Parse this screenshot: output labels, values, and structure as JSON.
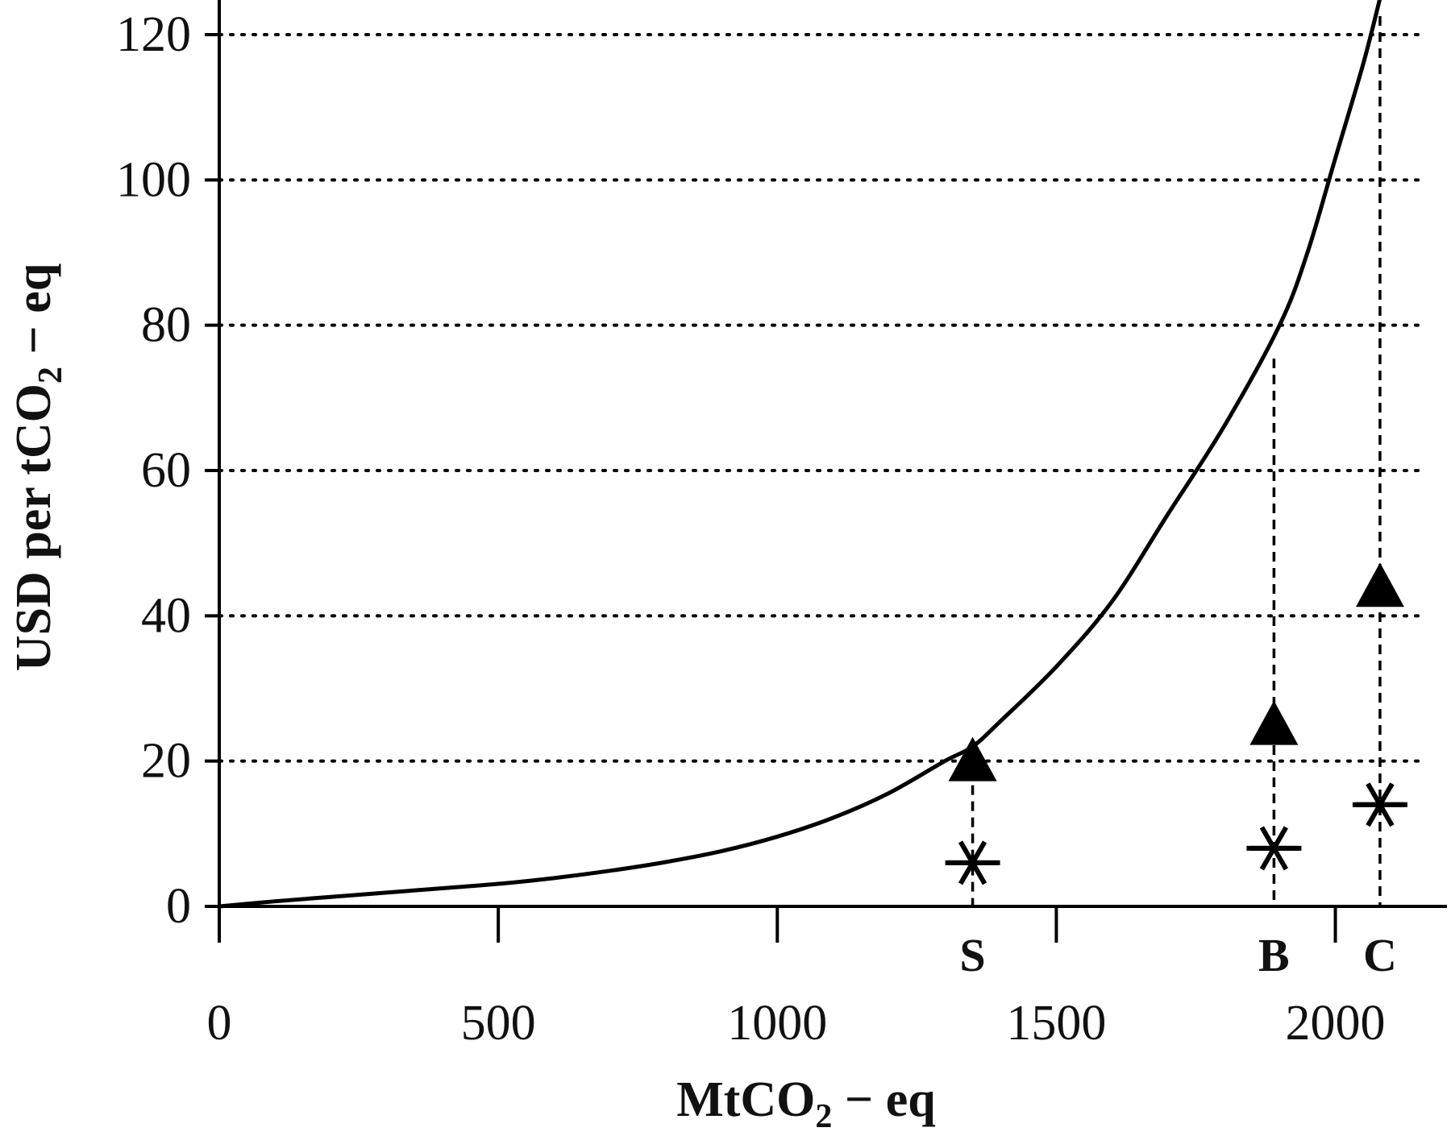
{
  "chart_data": {
    "type": "line",
    "title": "",
    "xlabel": {
      "main": "MtCO",
      "sub": "2",
      "suffix": " − eq"
    },
    "ylabel": {
      "main": "USD per tCO",
      "sub": "2",
      "suffix": " − eq"
    },
    "xlim": [
      0,
      2200
    ],
    "ylim": [
      0,
      120
    ],
    "xticks": [
      0,
      500,
      1000,
      1500,
      2000
    ],
    "xtick_labels": [
      "0",
      "500",
      "1000",
      "1500",
      "2000"
    ],
    "yticks": [
      0,
      20,
      40,
      60,
      80,
      100,
      120
    ],
    "ytick_labels": [
      "0",
      "20",
      "40",
      "60",
      "80",
      "100",
      "120"
    ],
    "grid": "horizontal dotted",
    "curve": {
      "x": [
        0,
        100,
        200,
        300,
        400,
        500,
        600,
        700,
        800,
        900,
        1000,
        1100,
        1200,
        1300,
        1350,
        1400,
        1500,
        1600,
        1700,
        1800,
        1900,
        1950,
        2000,
        2050,
        2080
      ],
      "y": [
        0,
        0.7,
        1.3,
        1.9,
        2.5,
        3.1,
        3.9,
        4.9,
        6.1,
        7.6,
        9.6,
        12.2,
        15.6,
        20.0,
        22.0,
        25.5,
        33.0,
        42.0,
        54.0,
        66.0,
        80.0,
        90.0,
        103.0,
        116.0,
        125.0
      ]
    },
    "markers": [
      {
        "label": "S",
        "x": 1350,
        "triangle": 20,
        "star": 6
      },
      {
        "label": "B",
        "x": 1890,
        "triangle": 25,
        "star": 8
      },
      {
        "label": "C",
        "x": 2080,
        "triangle": 44,
        "star": 14
      }
    ],
    "colors": {
      "line": "#000000",
      "grid": "#000000",
      "text": "#111111"
    }
  }
}
